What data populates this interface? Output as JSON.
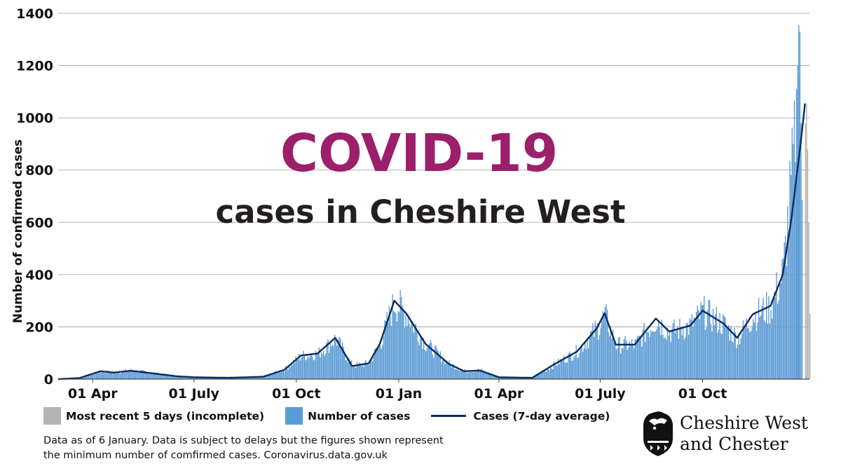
{
  "title": "COVID-19",
  "subtitle": "cases in Cheshire West",
  "colors": {
    "title": "#9b1f6a",
    "bars": "#5b9bd5",
    "incomplete": "#b4b4b4",
    "average_line": "#0d2b5e",
    "grid": "#9a9a9a"
  },
  "chart_data": {
    "type": "bar",
    "ylabel": "Number of confirmed cases",
    "xlabel": "",
    "ylim": [
      0,
      1400
    ],
    "yticks": [
      "0",
      "200",
      "400",
      "600",
      "800",
      "1000",
      "1200",
      "1400"
    ],
    "xticks": [
      {
        "label": "01 Apr",
        "date": "2020-04-01"
      },
      {
        "label": "01 July",
        "date": "2020-07-01"
      },
      {
        "label": "01 Oct",
        "date": "2020-10-01"
      },
      {
        "label": "01 Jan",
        "date": "2021-01-01"
      },
      {
        "label": "01 Apr",
        "date": "2021-04-01"
      },
      {
        "label": "01 July",
        "date": "2021-07-01"
      },
      {
        "label": "01 Oct",
        "date": "2021-10-01"
      }
    ],
    "grid": true,
    "x_range": [
      "2020-03-01",
      "2022-01-05"
    ],
    "series": [
      {
        "name": "Number of cases",
        "kind": "daily bars",
        "approx_profile": [
          {
            "date": "2020-03-01",
            "value": 0
          },
          {
            "date": "2020-03-20",
            "value": 5
          },
          {
            "date": "2020-04-08",
            "value": 30
          },
          {
            "date": "2020-04-20",
            "value": 26
          },
          {
            "date": "2020-05-05",
            "value": 34
          },
          {
            "date": "2020-05-25",
            "value": 24
          },
          {
            "date": "2020-06-15",
            "value": 12
          },
          {
            "date": "2020-07-01",
            "value": 7
          },
          {
            "date": "2020-08-01",
            "value": 5
          },
          {
            "date": "2020-09-01",
            "value": 10
          },
          {
            "date": "2020-09-20",
            "value": 38
          },
          {
            "date": "2020-10-05",
            "value": 92
          },
          {
            "date": "2020-10-20",
            "value": 100
          },
          {
            "date": "2020-11-05",
            "value": 160
          },
          {
            "date": "2020-11-20",
            "value": 52
          },
          {
            "date": "2020-12-05",
            "value": 62
          },
          {
            "date": "2020-12-15",
            "value": 140
          },
          {
            "date": "2020-12-28",
            "value": 305
          },
          {
            "date": "2021-01-08",
            "value": 255
          },
          {
            "date": "2021-01-25",
            "value": 140
          },
          {
            "date": "2021-02-15",
            "value": 60
          },
          {
            "date": "2021-03-01",
            "value": 32
          },
          {
            "date": "2021-03-15",
            "value": 35
          },
          {
            "date": "2021-04-01",
            "value": 8
          },
          {
            "date": "2021-05-01",
            "value": 5
          },
          {
            "date": "2021-05-20",
            "value": 55
          },
          {
            "date": "2021-06-10",
            "value": 110
          },
          {
            "date": "2021-06-28",
            "value": 200
          },
          {
            "date": "2021-07-05",
            "value": 250
          },
          {
            "date": "2021-07-15",
            "value": 135
          },
          {
            "date": "2021-08-01",
            "value": 135
          },
          {
            "date": "2021-08-20",
            "value": 235
          },
          {
            "date": "2021-09-01",
            "value": 185
          },
          {
            "date": "2021-09-20",
            "value": 210
          },
          {
            "date": "2021-10-01",
            "value": 265
          },
          {
            "date": "2021-10-20",
            "value": 215
          },
          {
            "date": "2021-11-01",
            "value": 160
          },
          {
            "date": "2021-11-15",
            "value": 250
          },
          {
            "date": "2021-12-01",
            "value": 285
          },
          {
            "date": "2021-12-12",
            "value": 420
          },
          {
            "date": "2021-12-20",
            "value": 800
          },
          {
            "date": "2021-12-28",
            "value": 1200
          },
          {
            "date": "2022-01-01",
            "value": 1340
          }
        ]
      },
      {
        "name": "Cases (7-day average)",
        "kind": "line",
        "approx_profile": [
          {
            "date": "2020-03-01",
            "value": 0
          },
          {
            "date": "2020-03-20",
            "value": 4
          },
          {
            "date": "2020-04-08",
            "value": 30
          },
          {
            "date": "2020-04-20",
            "value": 25
          },
          {
            "date": "2020-05-05",
            "value": 32
          },
          {
            "date": "2020-05-25",
            "value": 22
          },
          {
            "date": "2020-06-15",
            "value": 11
          },
          {
            "date": "2020-07-01",
            "value": 7
          },
          {
            "date": "2020-08-01",
            "value": 5
          },
          {
            "date": "2020-09-01",
            "value": 9
          },
          {
            "date": "2020-09-20",
            "value": 35
          },
          {
            "date": "2020-10-05",
            "value": 90
          },
          {
            "date": "2020-10-20",
            "value": 98
          },
          {
            "date": "2020-11-05",
            "value": 158
          },
          {
            "date": "2020-11-20",
            "value": 50
          },
          {
            "date": "2020-12-05",
            "value": 60
          },
          {
            "date": "2020-12-15",
            "value": 135
          },
          {
            "date": "2020-12-28",
            "value": 300
          },
          {
            "date": "2021-01-08",
            "value": 250
          },
          {
            "date": "2021-01-25",
            "value": 135
          },
          {
            "date": "2021-02-15",
            "value": 58
          },
          {
            "date": "2021-03-01",
            "value": 30
          },
          {
            "date": "2021-03-15",
            "value": 33
          },
          {
            "date": "2021-04-01",
            "value": 7
          },
          {
            "date": "2021-05-01",
            "value": 5
          },
          {
            "date": "2021-05-20",
            "value": 55
          },
          {
            "date": "2021-06-10",
            "value": 105
          },
          {
            "date": "2021-06-28",
            "value": 195
          },
          {
            "date": "2021-07-05",
            "value": 252
          },
          {
            "date": "2021-07-15",
            "value": 132
          },
          {
            "date": "2021-08-01",
            "value": 132
          },
          {
            "date": "2021-08-20",
            "value": 232
          },
          {
            "date": "2021-09-01",
            "value": 182
          },
          {
            "date": "2021-09-20",
            "value": 205
          },
          {
            "date": "2021-10-01",
            "value": 262
          },
          {
            "date": "2021-10-20",
            "value": 212
          },
          {
            "date": "2021-11-01",
            "value": 158
          },
          {
            "date": "2021-11-15",
            "value": 248
          },
          {
            "date": "2021-12-01",
            "value": 280
          },
          {
            "date": "2021-12-12",
            "value": 400
          },
          {
            "date": "2021-12-20",
            "value": 620
          },
          {
            "date": "2021-12-28",
            "value": 900
          },
          {
            "date": "2022-01-01",
            "value": 1055
          }
        ]
      },
      {
        "name": "Most recent 5 days (incomplete)",
        "kind": "grey bars",
        "points": [
          {
            "date": "2022-01-01",
            "value": 980
          },
          {
            "date": "2022-01-02",
            "value": 1055
          },
          {
            "date": "2022-01-03",
            "value": 880
          },
          {
            "date": "2022-01-04",
            "value": 600
          },
          {
            "date": "2022-01-05",
            "value": 250
          }
        ]
      }
    ]
  },
  "legend": {
    "incomplete": "Most recent 5 days (incomplete)",
    "cases": "Number of cases",
    "average": "Cases (7-day average)"
  },
  "note": {
    "line1": "Data as of 6 January. Data is subject to delays but the figures shown represent",
    "line2": "the minimum number of comfirmed cases.  Coronavirus.data.gov.uk"
  },
  "brand": {
    "line1": "Cheshire West",
    "line2": "and Chester",
    "logo_icon": "lion-crest-icon"
  }
}
